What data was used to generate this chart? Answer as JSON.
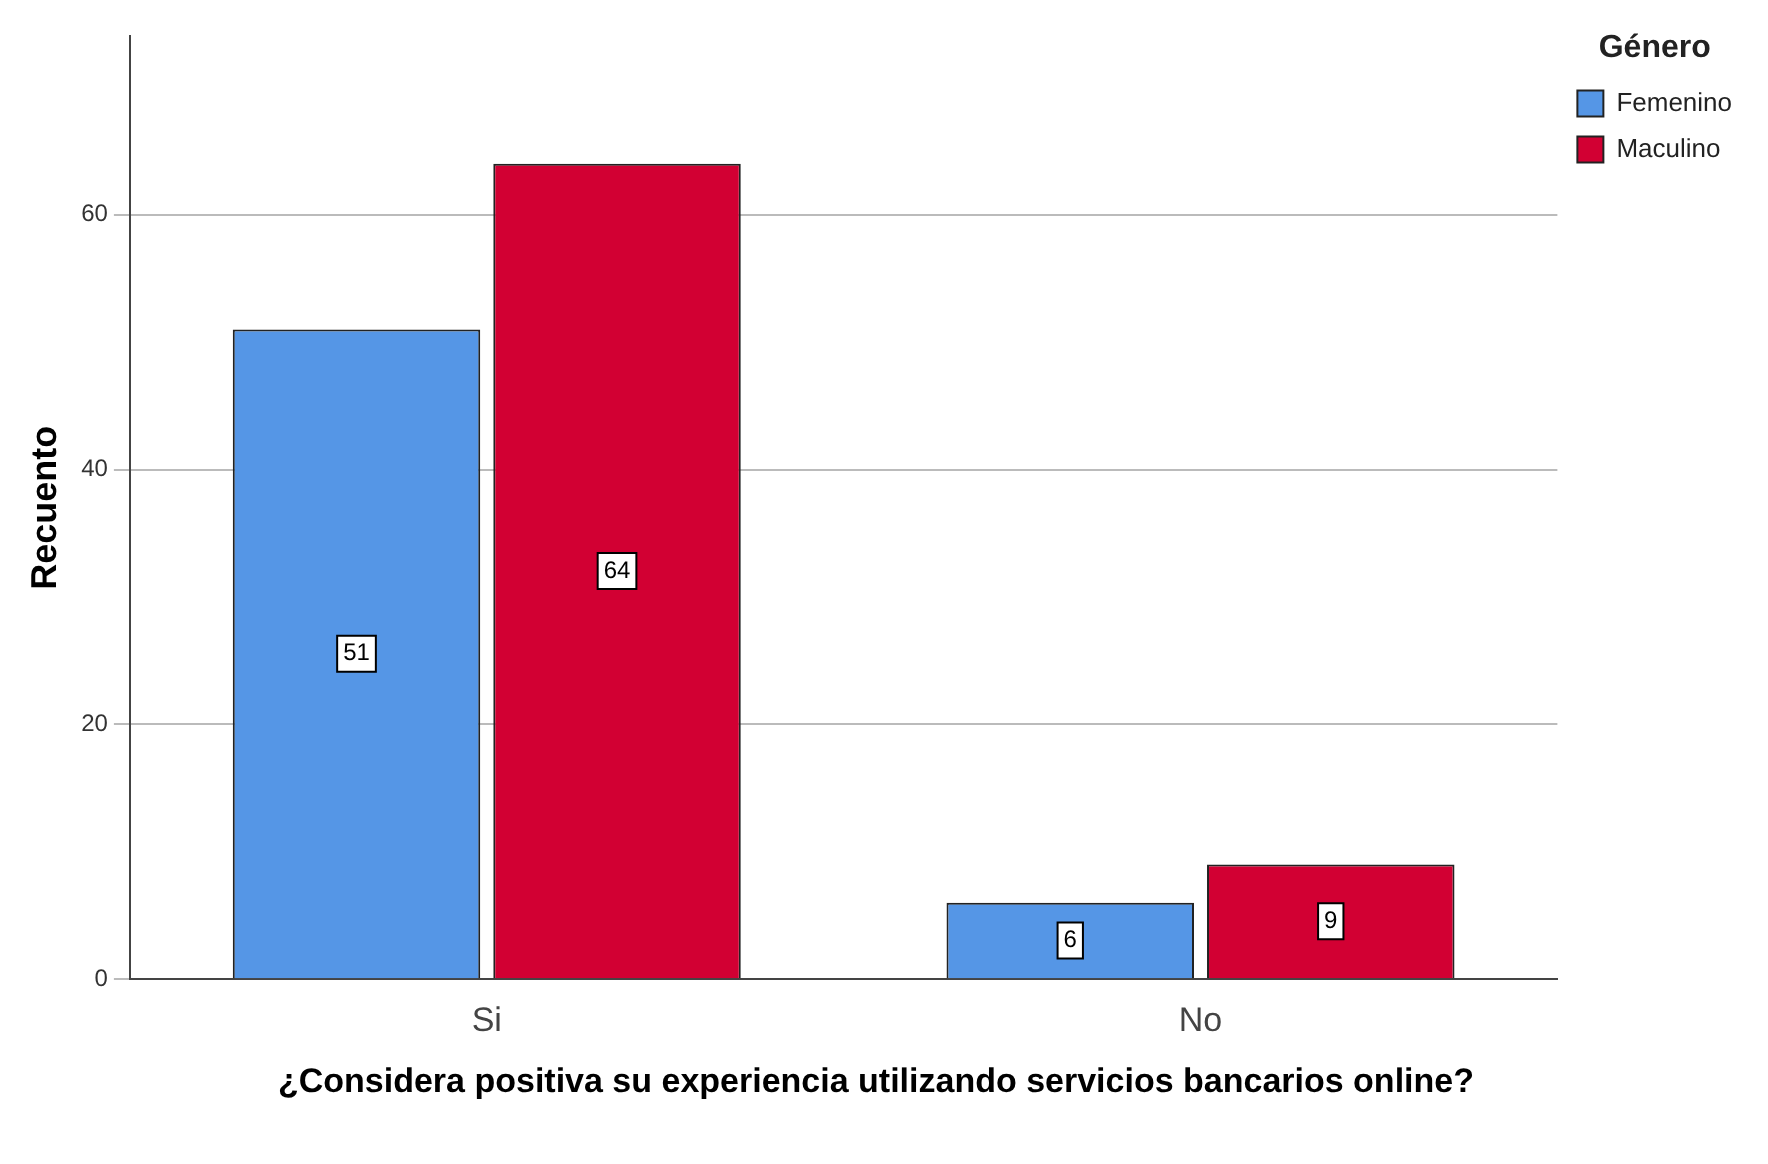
{
  "chart_data": {
    "type": "bar",
    "xlabel": "¿Considera positiva su experiencia utilizando servicios bancarios online?",
    "ylabel": "Recuento",
    "legend_title": "Género",
    "categories": [
      "Si",
      "No"
    ],
    "series": [
      {
        "name": "Femenino",
        "color": "#5596e6",
        "values": [
          51,
          6
        ]
      },
      {
        "name": "Maculino",
        "color": "#d20033",
        "values": [
          64,
          9
        ]
      }
    ],
    "ylim": [
      0,
      74
    ],
    "yticks": [
      0,
      20,
      40,
      60
    ],
    "grid": "y",
    "legend": "top right",
    "data_labels": true
  }
}
